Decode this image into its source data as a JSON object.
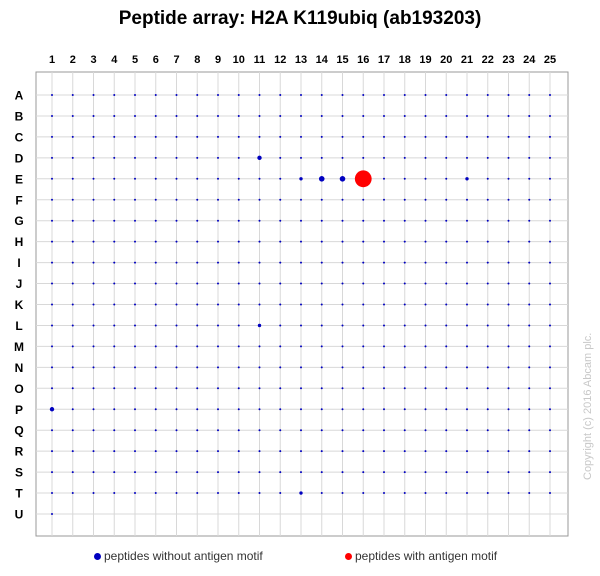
{
  "chart_data": {
    "type": "scatter",
    "title": "Peptide array:  H2A K119ubiq (ab193203)",
    "columns": [
      "1",
      "2",
      "3",
      "4",
      "5",
      "6",
      "7",
      "8",
      "9",
      "10",
      "11",
      "12",
      "13",
      "14",
      "15",
      "16",
      "17",
      "18",
      "19",
      "20",
      "21",
      "22",
      "23",
      "24",
      "25"
    ],
    "rows": [
      "A",
      "B",
      "C",
      "D",
      "E",
      "F",
      "G",
      "H",
      "I",
      "J",
      "K",
      "L",
      "M",
      "N",
      "O",
      "P",
      "Q",
      "R",
      "S",
      "T",
      "U"
    ],
    "grid": true,
    "legend_placement": "bottom",
    "series": [
      {
        "name": "peptides without antigen motif",
        "color": "#0000c0"
      },
      {
        "name": "peptides with antigen motif",
        "color": "#ff0000"
      }
    ],
    "highlight_points": [
      {
        "row": "D",
        "col": 11,
        "value": 3,
        "series": 0
      },
      {
        "row": "E",
        "col": 13,
        "value": 2,
        "series": 0
      },
      {
        "row": "E",
        "col": 14,
        "value": 4,
        "series": 0
      },
      {
        "row": "E",
        "col": 15,
        "value": 4,
        "series": 0
      },
      {
        "row": "E",
        "col": 16,
        "value": 16,
        "series": 1
      },
      {
        "row": "E",
        "col": 21,
        "value": 2,
        "series": 0
      },
      {
        "row": "L",
        "col": 11,
        "value": 2,
        "series": 0
      },
      {
        "row": "P",
        "col": 1,
        "value": 3,
        "series": 0
      },
      {
        "row": "T",
        "col": 13,
        "value": 2,
        "series": 0
      }
    ],
    "baseline_value": 1,
    "empty_cells": [
      {
        "row": "U",
        "col_from": 2,
        "col_to": 25
      }
    ]
  },
  "copyright": "Copyright (c) 2016 Abcam plc."
}
